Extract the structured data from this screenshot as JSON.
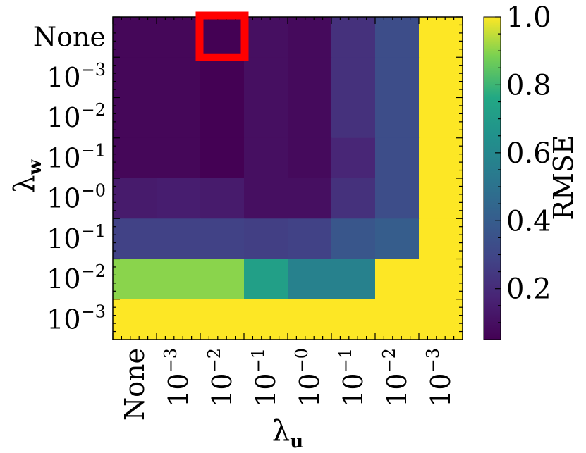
{
  "chart_data": {
    "type": "heatmap",
    "xlabel": "λ",
    "xlabel_sub": "u",
    "ylabel": "λ",
    "ylabel_sub": "w",
    "x_categories": [
      {
        "base": "None",
        "exp": ""
      },
      {
        "base": "10",
        "exp": "−3"
      },
      {
        "base": "10",
        "exp": "−2"
      },
      {
        "base": "10",
        "exp": "−1"
      },
      {
        "base": "10",
        "exp": "−0"
      },
      {
        "base": "10",
        "exp": "−1"
      },
      {
        "base": "10",
        "exp": "−2"
      },
      {
        "base": "10",
        "exp": "−3"
      }
    ],
    "y_categories": [
      {
        "base": "None",
        "exp": ""
      },
      {
        "base": "10",
        "exp": "−3"
      },
      {
        "base": "10",
        "exp": "−2"
      },
      {
        "base": "10",
        "exp": "−1"
      },
      {
        "base": "10",
        "exp": "−0"
      },
      {
        "base": "10",
        "exp": "−1"
      },
      {
        "base": "10",
        "exp": "−2"
      },
      {
        "base": "10",
        "exp": "−3"
      }
    ],
    "values": [
      [
        0.07,
        0.07,
        0.05,
        0.1,
        0.08,
        0.22,
        0.33,
        1.0
      ],
      [
        0.07,
        0.07,
        0.05,
        0.1,
        0.08,
        0.22,
        0.33,
        1.0
      ],
      [
        0.07,
        0.07,
        0.05,
        0.1,
        0.08,
        0.22,
        0.33,
        1.0
      ],
      [
        0.07,
        0.07,
        0.05,
        0.1,
        0.08,
        0.18,
        0.33,
        1.0
      ],
      [
        0.14,
        0.15,
        0.14,
        0.1,
        0.1,
        0.22,
        0.33,
        1.0
      ],
      [
        0.28,
        0.28,
        0.28,
        0.27,
        0.28,
        0.37,
        0.4,
        1.0
      ],
      [
        0.9,
        0.9,
        0.9,
        0.72,
        0.57,
        0.57,
        1.0,
        1.0
      ],
      [
        1.0,
        1.0,
        1.0,
        1.0,
        1.0,
        1.0,
        1.0,
        1.0
      ]
    ],
    "highlight": {
      "row": 0,
      "col": 2,
      "color": "#ff0000"
    },
    "colorbar": {
      "label": "RMSE",
      "range": [
        0.05,
        1.0
      ],
      "ticks": [
        "0.2",
        "0.4",
        "0.6",
        "0.8",
        "1.0"
      ],
      "colormap": "viridis"
    }
  }
}
